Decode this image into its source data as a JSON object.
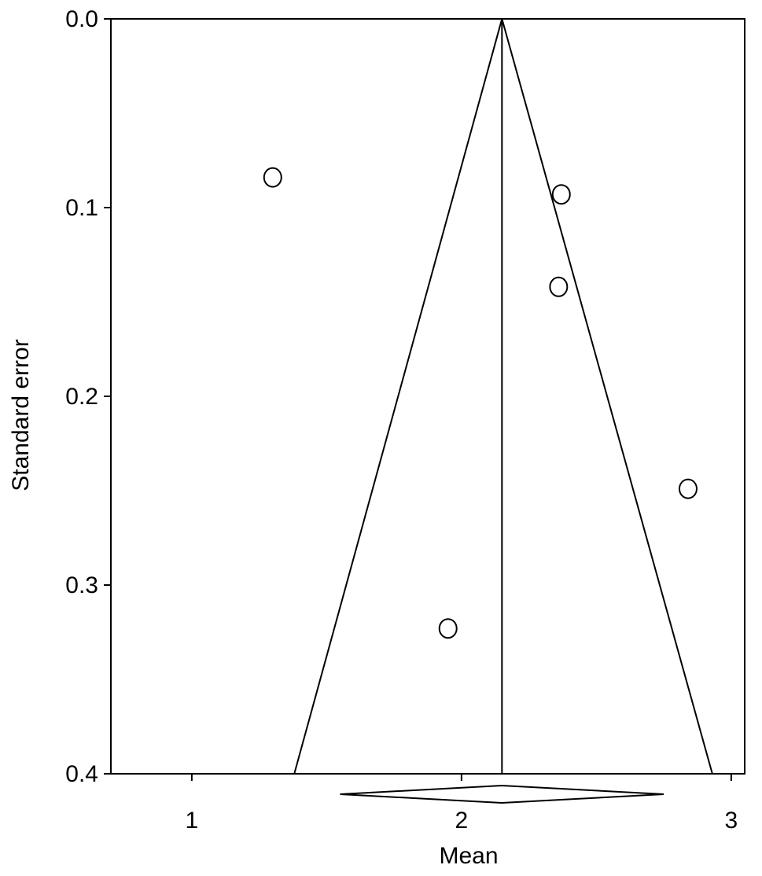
{
  "chart_data": {
    "type": "scatter",
    "subtype": "funnel-plot",
    "xlabel": "Mean",
    "ylabel": "Standard error",
    "xlim": [
      0.7,
      3.05
    ],
    "ylim": [
      0.4,
      0.0
    ],
    "y_axis_inverted": true,
    "x_ticks": [
      {
        "value": 1,
        "label": "1"
      },
      {
        "value": 2,
        "label": "2"
      },
      {
        "value": 3,
        "label": "3"
      }
    ],
    "y_ticks": [
      {
        "value": 0.0,
        "label": "0.0"
      },
      {
        "value": 0.1,
        "label": "0.1"
      },
      {
        "value": 0.2,
        "label": "0.2"
      },
      {
        "value": 0.3,
        "label": "0.3"
      },
      {
        "value": 0.4,
        "label": "0.4"
      }
    ],
    "pooled_mean": 2.15,
    "funnel_base_at_se": 0.4,
    "funnel_base_left": 1.38,
    "funnel_base_right": 2.93,
    "summary_diamond": {
      "center": 2.15,
      "left": 1.55,
      "right": 2.75
    },
    "points": [
      {
        "x": 1.3,
        "y": 0.084
      },
      {
        "x": 2.37,
        "y": 0.093
      },
      {
        "x": 2.36,
        "y": 0.142
      },
      {
        "x": 2.84,
        "y": 0.249
      },
      {
        "x": 1.95,
        "y": 0.323
      }
    ],
    "grid": false,
    "legend": "none",
    "colors": {
      "line": "#000000",
      "marker_fill": "#ffffff",
      "background": "#ffffff"
    }
  }
}
